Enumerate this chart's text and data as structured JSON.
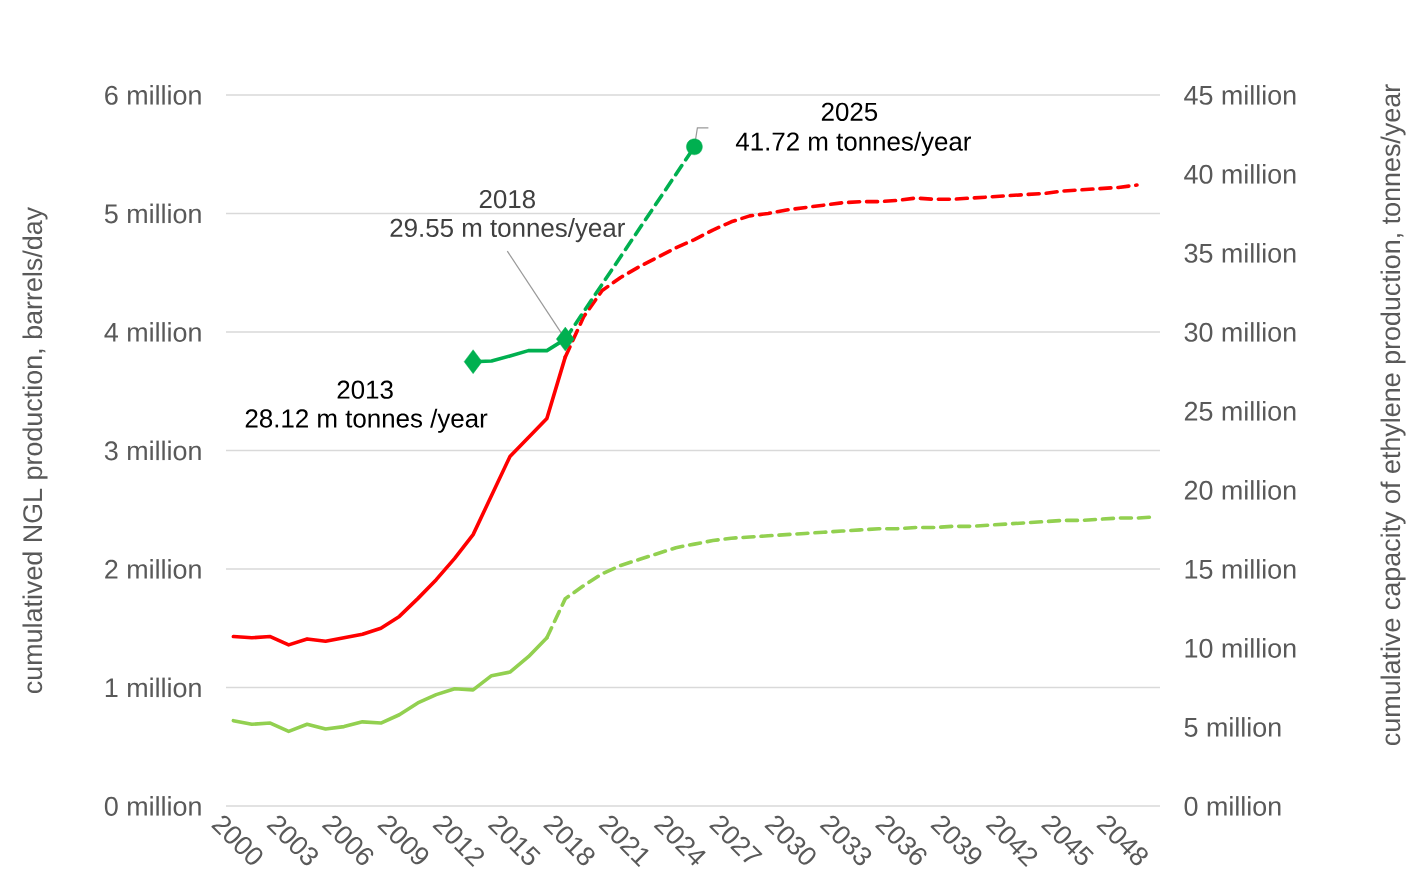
{
  "chart_data": {
    "type": "line",
    "ylabel": "cumulatived NGL production, barrels/day",
    "y2label": "cumulative  capacity of ethylene production, tonnes/year",
    "xlim": [
      1999.6,
      2050.25
    ],
    "xticks": [
      2000,
      2003,
      2006,
      2009,
      2012,
      2015,
      2018,
      2021,
      2024,
      2027,
      2030,
      2033,
      2036,
      2039,
      2042,
      2045,
      2048
    ],
    "ylim": [
      0,
      6
    ],
    "yticks": [
      {
        "value": 0,
        "label": "0 million"
      },
      {
        "value": 1,
        "label": "1 million"
      },
      {
        "value": 2,
        "label": "2 million"
      },
      {
        "value": 3,
        "label": "3 million"
      },
      {
        "value": 4,
        "label": "4 million"
      },
      {
        "value": 5,
        "label": "5 million"
      },
      {
        "value": 6,
        "label": "6 million"
      }
    ],
    "y2lim": [
      0,
      45
    ],
    "y2ticks": [
      {
        "value": 0,
        "label": "0 million"
      },
      {
        "value": 5,
        "label": "5 million"
      },
      {
        "value": 10,
        "label": "10 million"
      },
      {
        "value": 15,
        "label": "15 million"
      },
      {
        "value": 20,
        "label": "20 million"
      },
      {
        "value": 25,
        "label": "25 million"
      },
      {
        "value": 30,
        "label": "30 million"
      },
      {
        "value": 35,
        "label": "35 million"
      },
      {
        "value": 40,
        "label": "40 million"
      },
      {
        "value": 45,
        "label": "45 million"
      }
    ],
    "grid": "y",
    "annotations": [
      "2013",
      "28.12 m tonnes /year",
      "2018",
      {
        "text": "29.55 m tonnes/year",
        "x": 2018,
        "y": 3.94
      },
      "2025",
      "41.72 m tonnes/year"
    ],
    "series": [
      {
        "color": "#ff0000",
        "line_style": "solid",
        "x": [
          2000,
          2001,
          2002,
          2003,
          2004,
          2005,
          2006,
          2007,
          2008,
          2009,
          2010,
          2011,
          2012,
          2013,
          2014,
          2015,
          2016,
          2017,
          2018
        ],
        "values": [
          1.43,
          1.42,
          1.43,
          1.36,
          1.41,
          1.39,
          1.42,
          1.45,
          1.5,
          1.6,
          1.75,
          1.91,
          2.09,
          2.29,
          2.62,
          2.95,
          3.11,
          3.27,
          3.79
        ]
      },
      {
        "color": "#ff0000",
        "line_style": "dashed",
        "x": [
          2018,
          2019,
          2020,
          2021,
          2022,
          2023,
          2024,
          2025,
          2026,
          2027,
          2028,
          2029,
          2030,
          2031,
          2032,
          2033,
          2034,
          2035,
          2036,
          2037,
          2038,
          2039,
          2040,
          2041,
          2042,
          2043,
          2044,
          2045,
          2046,
          2047,
          2048,
          2049
        ],
        "values": [
          3.79,
          4.13,
          4.35,
          4.46,
          4.55,
          4.63,
          4.71,
          4.78,
          4.86,
          4.93,
          4.98,
          5.0,
          5.03,
          5.05,
          5.07,
          5.09,
          5.1,
          5.1,
          5.11,
          5.13,
          5.12,
          5.12,
          5.13,
          5.14,
          5.15,
          5.16,
          5.17,
          5.19,
          5.2,
          5.21,
          5.22,
          5.24
        ]
      },
      {
        "color": "#92d050",
        "line_style": "solid",
        "x": [
          2000,
          2001,
          2002,
          2003,
          2004,
          2005,
          2006,
          2007,
          2008,
          2009,
          2010,
          2011,
          2012,
          2013,
          2014,
          2015,
          2016,
          2017
        ],
        "values": [
          0.72,
          0.69,
          0.7,
          0.63,
          0.69,
          0.65,
          0.67,
          0.71,
          0.7,
          0.77,
          0.87,
          0.94,
          0.99,
          0.98,
          1.1,
          1.13,
          1.26,
          1.42
        ]
      },
      {
        "color": "#92d050",
        "line_style": "dashed",
        "x": [
          2017,
          2018,
          2019,
          2020,
          2021,
          2022,
          2023,
          2024,
          2025,
          2026,
          2027,
          2028,
          2029,
          2030,
          2031,
          2032,
          2033,
          2034,
          2035,
          2036,
          2037,
          2038,
          2039,
          2040,
          2041,
          2042,
          2043,
          2044,
          2045,
          2046,
          2047,
          2048,
          2049,
          2050
        ],
        "values": [
          1.42,
          1.75,
          1.86,
          1.96,
          2.03,
          2.08,
          2.13,
          2.18,
          2.21,
          2.24,
          2.26,
          2.27,
          2.28,
          2.29,
          2.3,
          2.31,
          2.32,
          2.33,
          2.34,
          2.34,
          2.35,
          2.35,
          2.36,
          2.36,
          2.37,
          2.38,
          2.39,
          2.4,
          2.41,
          2.41,
          2.42,
          2.43,
          2.43,
          2.44
        ]
      },
      {
        "color": "#00b050",
        "line_style": "solid",
        "axis": "y2",
        "x": [
          2013,
          2014,
          2015,
          2016,
          2017,
          2018
        ],
        "values": [
          28.12,
          28.16,
          28.48,
          28.82,
          28.82,
          29.55
        ]
      },
      {
        "color": "#00b050",
        "line_style": "dashed",
        "axis": "y2",
        "x": [
          2018,
          2025
        ],
        "values": [
          29.55,
          41.72
        ]
      },
      {
        "type": "scatter",
        "color": "#00b050",
        "marker": "diamond",
        "axis": "y2",
        "x": [
          2013,
          2018
        ],
        "values": [
          28.12,
          29.55
        ]
      },
      {
        "type": "scatter",
        "color": "#00b050",
        "marker": "circle",
        "axis": "y2",
        "x": [
          2025
        ],
        "values": [
          41.72
        ]
      }
    ]
  }
}
